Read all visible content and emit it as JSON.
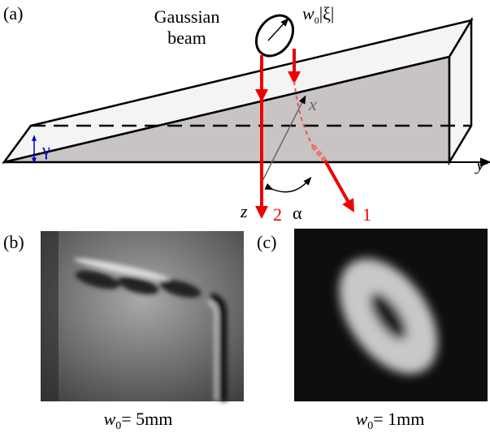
{
  "panel_a": {
    "label": "(a)",
    "beam_label": [
      "Gaussian",
      "beam"
    ],
    "waist": {
      "w": "w",
      "sub": "0",
      "rest": "|ξ|"
    },
    "axes": {
      "x": "x",
      "y": "y",
      "z": "z"
    },
    "angles": {
      "gamma": "γ",
      "alpha": "α"
    },
    "beams": {
      "reflected": "2",
      "refracted": "1"
    }
  },
  "panel_b": {
    "label": "(b)",
    "caption": {
      "w": "w",
      "sub": "0",
      "rest": "= 5mm"
    }
  },
  "panel_c": {
    "label": "(c)",
    "caption": {
      "w": "w",
      "sub": "0",
      "rest": "= 1mm"
    }
  }
}
